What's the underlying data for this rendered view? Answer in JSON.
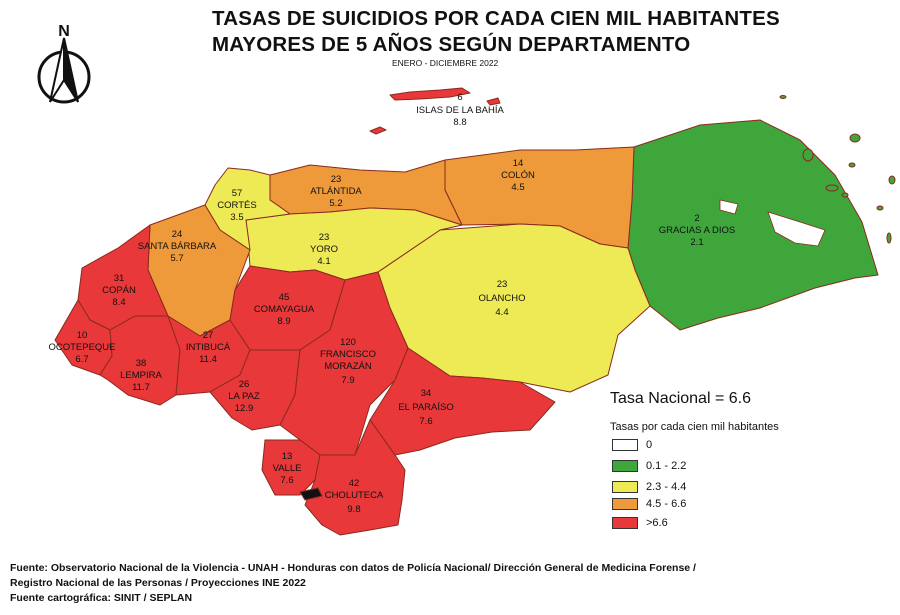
{
  "title_line1": "TASAS DE SUICIDIOS POR CADA CIEN MIL HABITANTES",
  "title_line2": "MAYORES DE 5 AÑOS SEGÚN DEPARTAMENTO",
  "subtitle": "ENERO - DICIEMBRE 2022",
  "north_label": "N",
  "tasa_nacional": "Tasa Nacional = 6.6",
  "legend": {
    "title": "Tasas por cada cien mil habitantes",
    "items": [
      {
        "label": "0",
        "color": "#ffffff"
      },
      {
        "label": "0.1 - 2.2",
        "color": "#3fa63c"
      },
      {
        "label": "2.3 - 4.4",
        "color": "#eeea55"
      },
      {
        "label": "4.5 - 6.6",
        "color": "#ee9a3a"
      },
      {
        "label": ">6.6",
        "color": "#e8383a"
      }
    ]
  },
  "departments": [
    {
      "name": "ISLAS DE LA BAHÍA",
      "cases": "6",
      "rate": "8.8"
    },
    {
      "name": "ATLÁNTIDA",
      "cases": "23",
      "rate": "5.2"
    },
    {
      "name": "COLÓN",
      "cases": "14",
      "rate": "4.5"
    },
    {
      "name": "GRACIAS A DIOS",
      "cases": "2",
      "rate": "2.1"
    },
    {
      "name": "CORTÉS",
      "cases": "57",
      "rate": "3.5"
    },
    {
      "name": "YORO",
      "cases": "23",
      "rate": "4.1"
    },
    {
      "name": "SANTA BÁRBARA",
      "cases": "24",
      "rate": "5.7"
    },
    {
      "name": "OLANCHO",
      "cases": "23",
      "rate": "4.4"
    },
    {
      "name": "COPÁN",
      "cases": "31",
      "rate": "8.4"
    },
    {
      "name": "COMAYAGUA",
      "cases": "45",
      "rate": "8.9"
    },
    {
      "name": "OCOTEPEQUE",
      "cases": "10",
      "rate": "6.7"
    },
    {
      "name": "INTIBUCÁ",
      "cases": "27",
      "rate": "11.4"
    },
    {
      "name": "FRANCISCO MORAZÁN",
      "name_line1": "FRANCISCO",
      "name_line2": "MORAZÁN",
      "cases": "120",
      "rate": "7.9"
    },
    {
      "name": "LEMPIRA",
      "cases": "38",
      "rate": "11.7"
    },
    {
      "name": "LA PAZ",
      "cases": "26",
      "rate": "12.9"
    },
    {
      "name": "EL PARAÍSO",
      "cases": "34",
      "rate": "7.6"
    },
    {
      "name": "VALLE",
      "cases": "13",
      "rate": "7.6"
    },
    {
      "name": "CHOLUTECA",
      "cases": "42",
      "rate": "9.8"
    }
  ],
  "source_line1": "Fuente: Observatorio Nacional de la Violencia - UNAH - Honduras con datos de Policía Nacional/ Dirección General de Medicina Forense /",
  "source_line2": "Registro Nacional de las Personas / Proyecciones INE 2022",
  "source_line3": "Fuente cartográfica: SINIT / SEPLAN"
}
